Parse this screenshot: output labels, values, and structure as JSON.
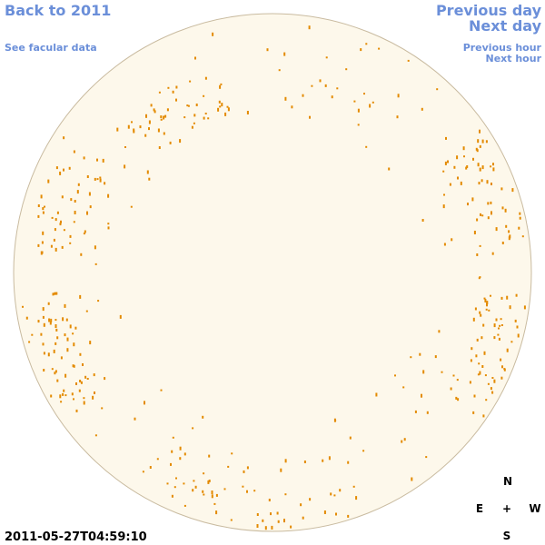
{
  "links": {
    "back": "Back to 2011",
    "facular": "See facular data",
    "previous_day": "Previous day",
    "next_day": "Next day",
    "previous_hour": "Previous hour",
    "next_hour": "Next hour"
  },
  "timestamp": "2011-05-27T04:59:10",
  "compass": {
    "north": "N",
    "east": "E",
    "center": "+",
    "west": "W",
    "south": "S"
  }
}
